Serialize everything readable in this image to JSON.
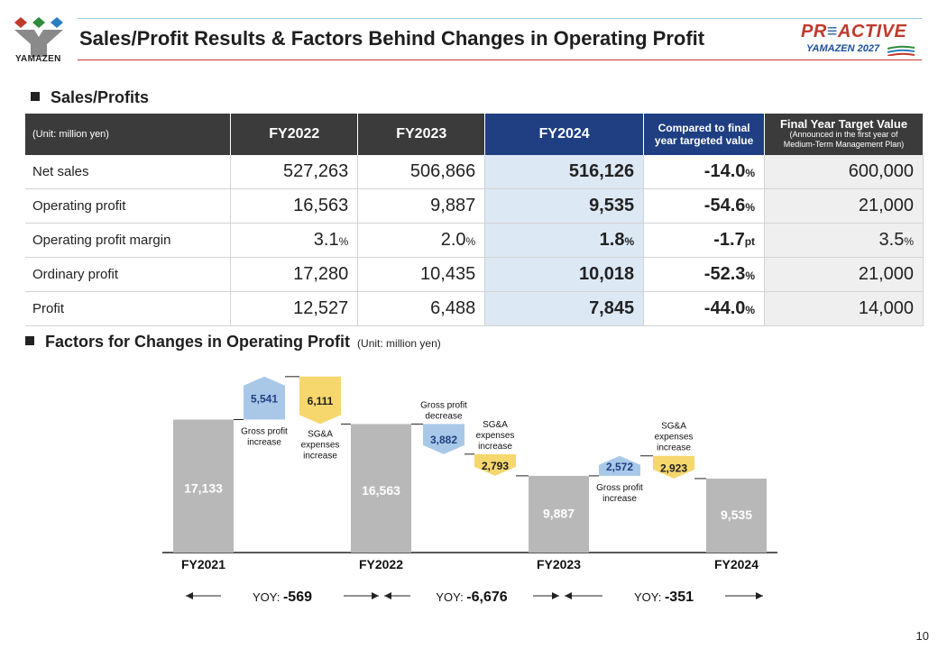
{
  "header": {
    "logo_text": "YAMAZEN",
    "title": "Sales/Profit Results & Factors Behind Changes in Operating Profit",
    "brand_top_1": "PR",
    "brand_top_2": "≡",
    "brand_top_3": "ACTIVE",
    "brand_bottom": "YAMAZEN 2027"
  },
  "section1": {
    "title": "Sales/Profits"
  },
  "table": {
    "unit_label": "(Unit: million yen)",
    "col_fy2022": "FY2022",
    "col_fy2023": "FY2023",
    "col_fy2024": "FY2024",
    "col_compare_1": "Compared to final",
    "col_compare_2": "year targeted value",
    "col_target_title": "Final Year Target Value",
    "col_target_sub_1": "(Announced in the first year of",
    "col_target_sub_2": "Medium-Term Management Plan)",
    "rows": [
      {
        "label": "Net sales",
        "fy2022": "527,263",
        "fy2022_u": "",
        "fy2023": "506,866",
        "fy2023_u": "",
        "fy2024": "516,126",
        "fy2024_u": "",
        "cmp": "-14.0",
        "cmp_u": "%",
        "tgt": "600,000",
        "tgt_u": ""
      },
      {
        "label": "Operating profit",
        "fy2022": "16,563",
        "fy2022_u": "",
        "fy2023": "9,887",
        "fy2023_u": "",
        "fy2024": "9,535",
        "fy2024_u": "",
        "cmp": "-54.6",
        "cmp_u": "%",
        "tgt": "21,000",
        "tgt_u": ""
      },
      {
        "label": "Operating profit margin",
        "fy2022": "3.1",
        "fy2022_u": "%",
        "fy2023": "2.0",
        "fy2023_u": "%",
        "fy2024": "1.8",
        "fy2024_u": "%",
        "cmp": "-1.7",
        "cmp_u": "pt",
        "tgt": "3.5",
        "tgt_u": "%"
      },
      {
        "label": "Ordinary profit",
        "fy2022": "17,280",
        "fy2022_u": "",
        "fy2023": "10,435",
        "fy2023_u": "",
        "fy2024": "10,018",
        "fy2024_u": "",
        "cmp": "-52.3",
        "cmp_u": "%",
        "tgt": "21,000",
        "tgt_u": ""
      },
      {
        "label": "Profit",
        "fy2022": "12,527",
        "fy2022_u": "",
        "fy2023": "6,488",
        "fy2023_u": "",
        "fy2024": "7,845",
        "fy2024_u": "",
        "cmp": "-44.0",
        "cmp_u": "%",
        "tgt": "14,000",
        "tgt_u": ""
      }
    ]
  },
  "section2": {
    "title": "Factors for Changes in Operating Profit",
    "unit": "(Unit: million yen)"
  },
  "chart_data": {
    "type": "bar",
    "subtype": "waterfall",
    "unit": "million yen",
    "totals": [
      {
        "year": "FY2021",
        "value": 17133,
        "label": "17,133"
      },
      {
        "year": "FY2022",
        "value": 16563,
        "label": "16,563"
      },
      {
        "year": "FY2023",
        "value": 9887,
        "label": "9,887"
      },
      {
        "year": "FY2024",
        "value": 9535,
        "label": "9,535"
      }
    ],
    "factors": [
      {
        "segment": 0,
        "label_lines": [
          "Gross profit",
          "increase"
        ],
        "value": 5541,
        "value_label": "5,541",
        "color": "#a9c8e8",
        "text_color": "#1f3f82"
      },
      {
        "segment": 0,
        "label_lines": [
          "SG&A",
          "expenses",
          "increase"
        ],
        "value": -6111,
        "value_label": "6,111",
        "color": "#f5d76e",
        "text_color": "#1f1f1f"
      },
      {
        "segment": 1,
        "label_lines": [
          "Gross profit",
          "decrease"
        ],
        "value": -3882,
        "value_label": "3,882",
        "color": "#a9c8e8",
        "text_color": "#1f3f82"
      },
      {
        "segment": 1,
        "label_lines": [
          "SG&A",
          "expenses",
          "increase"
        ],
        "value": -2793,
        "value_label": "2,793",
        "color": "#f5d76e",
        "text_color": "#1f1f1f"
      },
      {
        "segment": 2,
        "label_lines": [
          "Gross profit",
          "increase"
        ],
        "value": 2572,
        "value_label": "2,572",
        "color": "#a9c8e8",
        "text_color": "#1f3f82"
      },
      {
        "segment": 2,
        "label_lines": [
          "SG&A",
          "expenses",
          "increase"
        ],
        "value": -2923,
        "value_label": "2,923",
        "color": "#f5d76e",
        "text_color": "#1f1f1f"
      }
    ],
    "yoy": [
      {
        "prefix": "YOY: ",
        "value": "-569"
      },
      {
        "prefix": "YOY: ",
        "value": "-6,676"
      },
      {
        "prefix": "YOY: ",
        "value": "-351"
      }
    ],
    "total_color": "#b8b8b8",
    "ylim": [
      0,
      23000
    ]
  },
  "page_number": "10"
}
